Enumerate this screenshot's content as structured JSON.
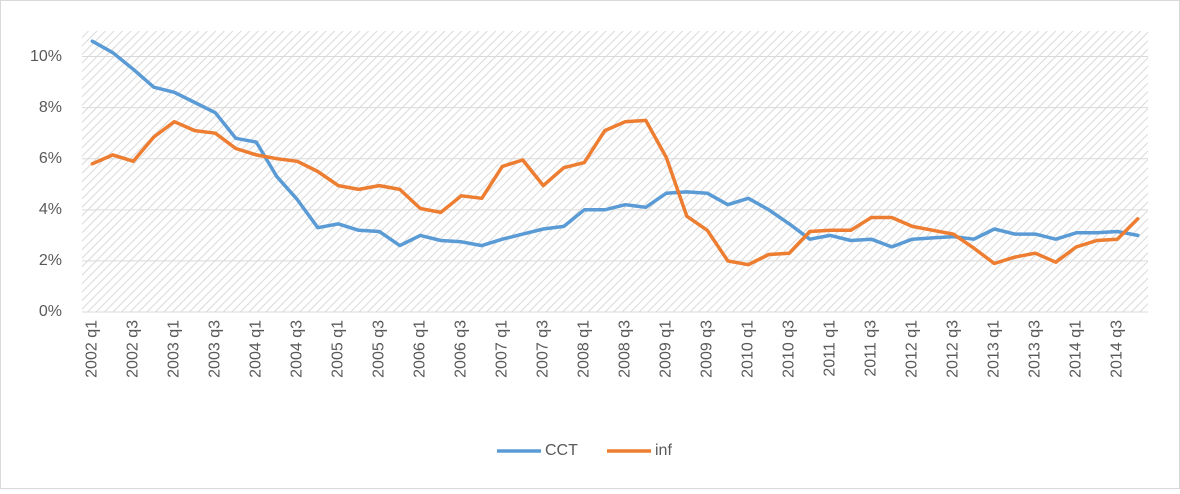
{
  "chart_data": {
    "type": "line",
    "categories": [
      "2002 q1",
      null,
      "2002 q3",
      null,
      "2003 q1",
      null,
      "2003 q3",
      null,
      "2004 q1",
      null,
      "2004 q3",
      null,
      "2005 q1",
      null,
      "2005 q3",
      null,
      "2006 q1",
      null,
      "2006 q3",
      null,
      "2007 q1",
      null,
      "2007 q3",
      null,
      "2008 q1",
      null,
      "2008 q3",
      null,
      "2009 q1",
      null,
      "2009 q3",
      null,
      "2010 q1",
      null,
      "2010 q3",
      null,
      "2011 q1",
      null,
      "2011 q3",
      null,
      "2012 q1",
      null,
      "2012 q3",
      null,
      "2013 q1",
      null,
      "2013 q3",
      null,
      "2014 q1",
      null,
      "2014 q3",
      null
    ],
    "series": [
      {
        "name": "CCT",
        "color": "#5b9bd5",
        "values": [
          10.6,
          10.15,
          9.5,
          8.8,
          8.6,
          8.2,
          7.8,
          6.8,
          6.65,
          5.3,
          4.4,
          3.3,
          3.45,
          3.2,
          3.15,
          2.6,
          3.0,
          2.8,
          2.75,
          2.6,
          2.85,
          3.05,
          3.25,
          3.35,
          4.0,
          4.0,
          4.2,
          4.1,
          4.65,
          4.7,
          4.65,
          4.2,
          4.45,
          4.0,
          3.45,
          2.85,
          3.0,
          2.8,
          2.85,
          2.55,
          2.85,
          2.9,
          2.95,
          2.85,
          3.25,
          3.05,
          3.05,
          2.85,
          3.1,
          3.1,
          3.15,
          3.0
        ]
      },
      {
        "name": "inf",
        "color": "#ed7d31",
        "values": [
          5.8,
          6.15,
          5.9,
          6.85,
          7.45,
          7.1,
          7.0,
          6.4,
          6.15,
          6.0,
          5.9,
          5.5,
          4.95,
          4.8,
          4.95,
          4.8,
          4.05,
          3.9,
          4.55,
          4.45,
          5.7,
          5.95,
          4.95,
          5.65,
          5.85,
          7.1,
          7.45,
          7.5,
          6.05,
          3.75,
          3.2,
          2.0,
          1.85,
          2.25,
          2.3,
          3.15,
          3.2,
          3.2,
          3.7,
          3.7,
          3.35,
          3.2,
          3.05,
          2.5,
          1.9,
          2.15,
          2.3,
          1.95,
          2.55,
          2.8,
          2.85,
          3.65
        ]
      }
    ],
    "ylim": [
      0,
      11
    ],
    "yticks": [
      {
        "value": 0,
        "label": "0%"
      },
      {
        "value": 2,
        "label": "2%"
      },
      {
        "value": 4,
        "label": "4%"
      },
      {
        "value": 6,
        "label": "6%"
      },
      {
        "value": 8,
        "label": "8%"
      },
      {
        "value": 10,
        "label": "10%"
      }
    ],
    "grid": true,
    "legend": "bottom"
  }
}
